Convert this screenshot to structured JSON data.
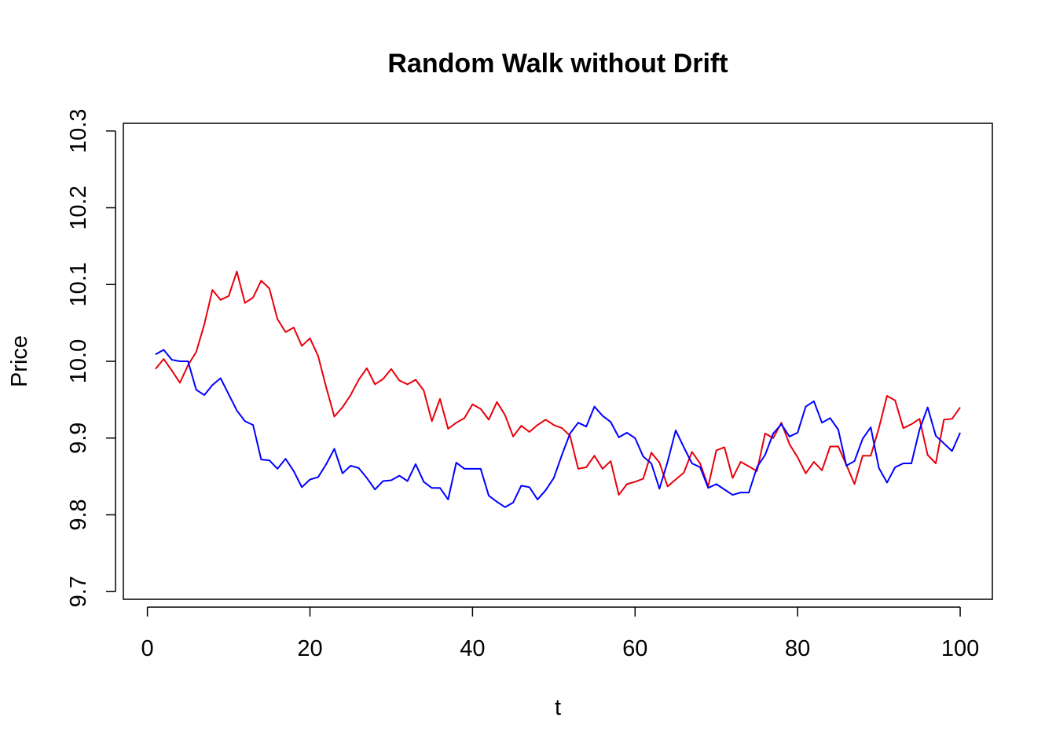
{
  "chart_data": {
    "type": "line",
    "title": "Random Walk without Drift",
    "xlabel": "t",
    "ylabel": "Price",
    "xlim": [
      1,
      100
    ],
    "ylim": [
      9.69,
      10.31
    ],
    "x_ticks": [
      0,
      20,
      40,
      60,
      80,
      100
    ],
    "x_tick_labels": [
      "0",
      "20",
      "40",
      "60",
      "80",
      "100"
    ],
    "y_ticks": [
      9.7,
      9.8,
      9.9,
      10.0,
      10.1,
      10.2,
      10.3
    ],
    "y_tick_labels": [
      "9.7",
      "9.8",
      "9.9",
      "10.0",
      "10.1",
      "10.2",
      "10.3"
    ],
    "grid": false,
    "legend": "none",
    "x": [
      1,
      2,
      3,
      4,
      5,
      6,
      7,
      8,
      9,
      10,
      11,
      12,
      13,
      14,
      15,
      16,
      17,
      18,
      19,
      20,
      21,
      22,
      23,
      24,
      25,
      26,
      27,
      28,
      29,
      30,
      31,
      32,
      33,
      34,
      35,
      36,
      37,
      38,
      39,
      40,
      41,
      42,
      43,
      44,
      45,
      46,
      47,
      48,
      49,
      50,
      51,
      52,
      53,
      54,
      55,
      56,
      57,
      58,
      59,
      60,
      61,
      62,
      63,
      64,
      65,
      66,
      67,
      68,
      69,
      70,
      71,
      72,
      73,
      74,
      75,
      76,
      77,
      78,
      79,
      80,
      81,
      82,
      83,
      84,
      85,
      86,
      87,
      88,
      89,
      90,
      91,
      92,
      93,
      94,
      95,
      96,
      97,
      98,
      99,
      100
    ],
    "series": [
      {
        "color": "#e8000b",
        "values": [
          9.99,
          10.003,
          9.988,
          9.972,
          9.995,
          10.012,
          10.048,
          10.093,
          10.08,
          10.085,
          10.117,
          10.076,
          10.083,
          10.105,
          10.095,
          10.055,
          10.038,
          10.044,
          10.02,
          10.03,
          10.007,
          9.966,
          9.928,
          9.94,
          9.956,
          9.976,
          9.991,
          9.97,
          9.977,
          9.99,
          9.975,
          9.97,
          9.976,
          9.962,
          9.922,
          9.951,
          9.912,
          9.92,
          9.926,
          9.944,
          9.938,
          9.924,
          9.947,
          9.93,
          9.902,
          9.916,
          9.908,
          9.917,
          9.924,
          9.917,
          9.913,
          9.903,
          9.86,
          9.862,
          9.877,
          9.86,
          9.87,
          9.826,
          9.84,
          9.843,
          9.847,
          9.881,
          9.868,
          9.837,
          9.846,
          9.855,
          9.882,
          9.867,
          9.837,
          9.884,
          9.888,
          9.848,
          9.869,
          9.863,
          9.857,
          9.906,
          9.9,
          9.92,
          9.892,
          9.875,
          9.854,
          9.869,
          9.858,
          9.889,
          9.889,
          9.865,
          9.84,
          9.877,
          9.877,
          9.913,
          9.955,
          9.949,
          9.913,
          9.918,
          9.925,
          9.878,
          9.867,
          9.924,
          9.925,
          9.94
        ]
      },
      {
        "color": "#0000ff",
        "values": [
          10.009,
          10.015,
          10.002,
          10.0,
          10.0,
          9.963,
          9.956,
          9.969,
          9.978,
          9.957,
          9.936,
          9.922,
          9.917,
          9.872,
          9.871,
          9.86,
          9.873,
          9.857,
          9.836,
          9.846,
          9.849,
          9.866,
          9.886,
          9.854,
          9.864,
          9.861,
          9.848,
          9.833,
          9.844,
          9.845,
          9.851,
          9.844,
          9.866,
          9.843,
          9.835,
          9.835,
          9.82,
          9.868,
          9.86,
          9.86,
          9.86,
          9.825,
          9.817,
          9.81,
          9.816,
          9.838,
          9.836,
          9.82,
          9.832,
          9.848,
          9.878,
          9.906,
          9.92,
          9.915,
          9.941,
          9.929,
          9.921,
          9.901,
          9.907,
          9.9,
          9.876,
          9.867,
          9.834,
          9.869,
          9.91,
          9.888,
          9.867,
          9.862,
          9.835,
          9.84,
          9.833,
          9.826,
          9.829,
          9.829,
          9.862,
          9.878,
          9.906,
          9.918,
          9.902,
          9.907,
          9.941,
          9.948,
          9.92,
          9.926,
          9.911,
          9.864,
          9.87,
          9.899,
          9.914,
          9.861,
          9.842,
          9.862,
          9.867,
          9.867,
          9.911,
          9.94,
          9.903,
          9.893,
          9.883,
          9.907
        ]
      }
    ]
  }
}
